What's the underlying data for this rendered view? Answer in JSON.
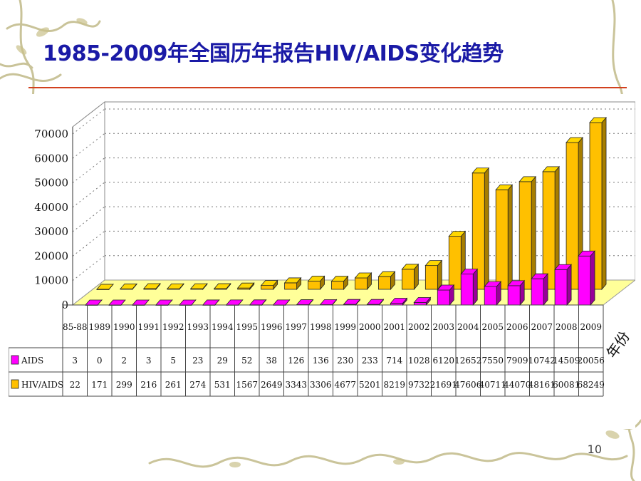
{
  "slide": {
    "title": "1985-2009年全国历年报告HIV/AIDS变化趋势",
    "page_number": "10"
  },
  "colors": {
    "title": "#1a1aa6",
    "rule": "#d2401e",
    "aids_bar": "#ff00ff",
    "hiv_bar": "#ffc000",
    "floor": "#ffff99",
    "vine": "#b8b078"
  },
  "chart_data": {
    "type": "bar",
    "style": "3d-clustered-columns-with-data-table",
    "categories": [
      "85-88",
      "1989",
      "1990",
      "1991",
      "1992",
      "1993",
      "1994",
      "1995",
      "1996",
      "1997",
      "1998",
      "1999",
      "2000",
      "2001",
      "2002",
      "2003",
      "2004",
      "2005",
      "2006",
      "2007",
      "2008",
      "2009"
    ],
    "series": [
      {
        "name": "AIDS",
        "color": "#ff00ff",
        "values": [
          3,
          0,
          2,
          3,
          5,
          23,
          29,
          52,
          38,
          126,
          136,
          230,
          233,
          714,
          1028,
          6120,
          12652,
          7550,
          7909,
          10742,
          14509,
          20056
        ]
      },
      {
        "name": "HIV/AIDS",
        "color": "#ffc000",
        "values": [
          22,
          171,
          299,
          216,
          261,
          274,
          531,
          1567,
          2649,
          3343,
          3306,
          4677,
          5201,
          8219,
          9732,
          21691,
          47606,
          40711,
          44070,
          48161,
          60081,
          68249
        ]
      }
    ],
    "y_ticks": [
      "0",
      "10000",
      "20000",
      "30000",
      "40000",
      "50000",
      "60000",
      "70000"
    ],
    "ylim": [
      0,
      70000
    ],
    "xlabel": "年份",
    "ylabel": "",
    "grid": true,
    "legend": "data-table-left"
  }
}
